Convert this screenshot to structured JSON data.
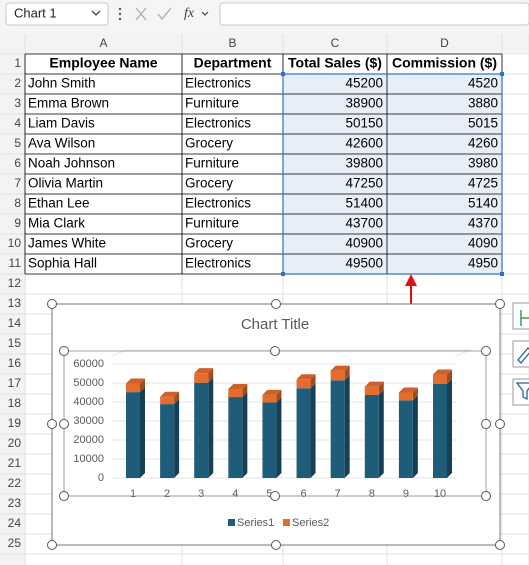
{
  "name_box": "Chart 1",
  "formula_label": "fx",
  "columns": [
    "A",
    "B",
    "C",
    "D"
  ],
  "row_numbers": [
    1,
    2,
    3,
    4,
    5,
    6,
    7,
    8,
    9,
    10,
    11,
    12,
    13,
    14,
    15,
    16,
    17,
    18,
    19,
    20,
    21,
    22,
    23,
    24,
    25
  ],
  "table": {
    "header": [
      "Employee Name",
      "Department",
      "Total Sales ($)",
      "Commission ($)"
    ],
    "rows": [
      [
        "John Smith",
        "Electronics",
        45200,
        4520
      ],
      [
        "Emma Brown",
        "Furniture",
        38900,
        3880
      ],
      [
        "Liam Davis",
        "Electronics",
        50150,
        5015
      ],
      [
        "Ava Wilson",
        "Grocery",
        42600,
        4260
      ],
      [
        "Noah Johnson",
        "Furniture",
        39800,
        3980
      ],
      [
        "Olivia Martin",
        "Grocery",
        47250,
        4725
      ],
      [
        "Ethan Lee",
        "Electronics",
        51400,
        5140
      ],
      [
        "Mia Clark",
        "Furniture",
        43700,
        4370
      ],
      [
        "James White",
        "Grocery",
        40900,
        4090
      ],
      [
        "Sophia Hall",
        "Electronics",
        49500,
        4950
      ]
    ]
  },
  "chart": {
    "type": "bar",
    "stacked": true,
    "title": "Chart Title",
    "categories": [
      1,
      2,
      3,
      4,
      5,
      6,
      7,
      8,
      9,
      10
    ],
    "series": [
      {
        "name": "Series1",
        "color": "#1f5c7a",
        "values": [
          45200,
          38900,
          50150,
          42600,
          39800,
          47250,
          51400,
          43700,
          40900,
          49500
        ]
      },
      {
        "name": "Series2",
        "color": "#e46c2c",
        "values": [
          4520,
          3880,
          5015,
          4260,
          3980,
          4725,
          5140,
          4370,
          4090,
          4950
        ]
      }
    ],
    "ylim": [
      0,
      60000
    ],
    "yticks": [
      0,
      10000,
      20000,
      30000,
      40000,
      50000,
      60000
    ],
    "grid": true
  }
}
